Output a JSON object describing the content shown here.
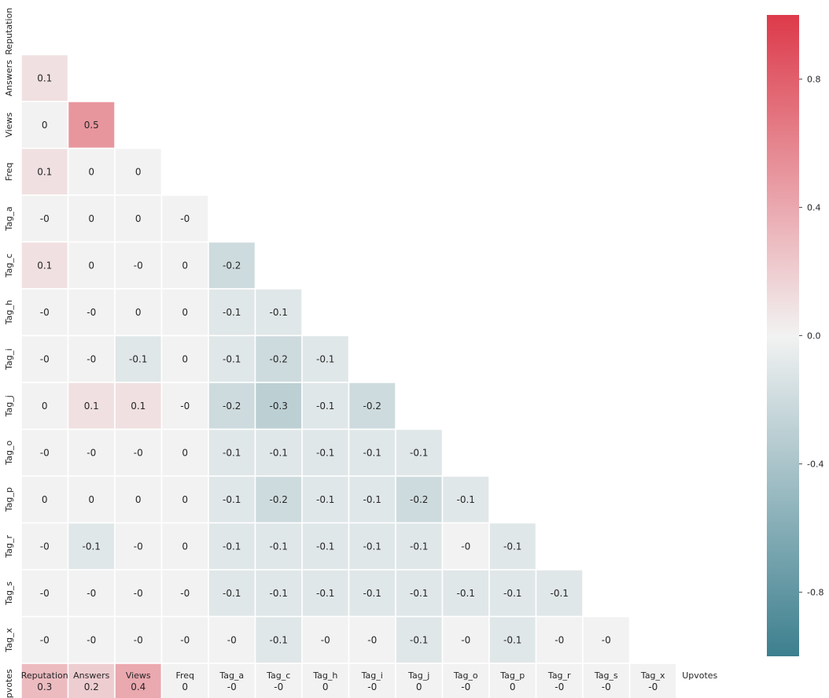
{
  "chart_data": {
    "type": "heatmap",
    "title": "",
    "variables": [
      "Reputation",
      "Answers",
      "Views",
      "Freq",
      "Tag_a",
      "Tag_c",
      "Tag_h",
      "Tag_i",
      "Tag_j",
      "Tag_o",
      "Tag_p",
      "Tag_r",
      "Tag_s",
      "Tag_x",
      "Upvotes"
    ],
    "lower_triangle": [
      [],
      [
        "0.1"
      ],
      [
        "0",
        "0.5"
      ],
      [
        "0.1",
        "0",
        "0"
      ],
      [
        "-0",
        "0",
        "0",
        "-0"
      ],
      [
        "0.1",
        "0",
        "-0",
        "0",
        "-0.2"
      ],
      [
        "-0",
        "-0",
        "0",
        "0",
        "-0.1",
        "-0.1"
      ],
      [
        "-0",
        "-0",
        "-0.1",
        "0",
        "-0.1",
        "-0.2",
        "-0.1"
      ],
      [
        "0",
        "0.1",
        "0.1",
        "-0",
        "-0.2",
        "-0.3",
        "-0.1",
        "-0.2"
      ],
      [
        "-0",
        "-0",
        "-0",
        "0",
        "-0.1",
        "-0.1",
        "-0.1",
        "-0.1",
        "-0.1"
      ],
      [
        "0",
        "0",
        "0",
        "0",
        "-0.1",
        "-0.2",
        "-0.1",
        "-0.1",
        "-0.2",
        "-0.1"
      ],
      [
        "-0",
        "-0.1",
        "-0",
        "0",
        "-0.1",
        "-0.1",
        "-0.1",
        "-0.1",
        "-0.1",
        "-0",
        "-0.1"
      ],
      [
        "-0",
        "-0",
        "-0",
        "-0",
        "-0.1",
        "-0.1",
        "-0.1",
        "-0.1",
        "-0.1",
        "-0.1",
        "-0.1",
        "-0.1"
      ],
      [
        "-0",
        "-0",
        "-0",
        "-0",
        "-0",
        "-0.1",
        "-0",
        "-0",
        "-0.1",
        "-0",
        "-0.1",
        "-0",
        "-0"
      ],
      [
        "0.3",
        "0.2",
        "0.4",
        "0",
        "-0",
        "-0",
        "0",
        "-0",
        "0",
        "-0",
        "0",
        "-0",
        "-0",
        "-0"
      ]
    ],
    "mask": "upper triangle including diagonal",
    "colorbar": {
      "vmin": -1,
      "vmax": 1,
      "ticks": [
        "-0.8",
        "-0.4",
        "0.0",
        "0.4",
        "0.8"
      ],
      "colors": {
        "negative": "#3d7f8e",
        "center": "#f2f2f2",
        "positive": "#dd3a4a"
      }
    }
  }
}
